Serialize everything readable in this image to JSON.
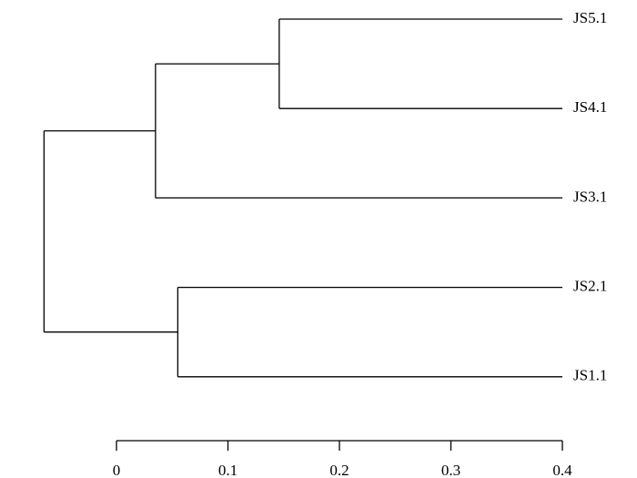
{
  "chart_data": {
    "type": "dendrogram",
    "leaves": [
      "JS5.1",
      "JS4.1",
      "JS3.1",
      "JS2.1",
      "JS1.1"
    ],
    "leaf_height": 0.4,
    "merges": [
      {
        "children": [
          0,
          1
        ],
        "height": 0.146
      },
      {
        "children": [
          2,
          5
        ],
        "height": 0.035
      },
      {
        "children": [
          3,
          4
        ],
        "height": 0.055
      },
      {
        "children": [
          6,
          7
        ],
        "height": -0.065
      }
    ],
    "xlim": [
      0,
      0.4
    ],
    "xticks": [
      0,
      0.1,
      0.2,
      0.3,
      0.4
    ]
  }
}
